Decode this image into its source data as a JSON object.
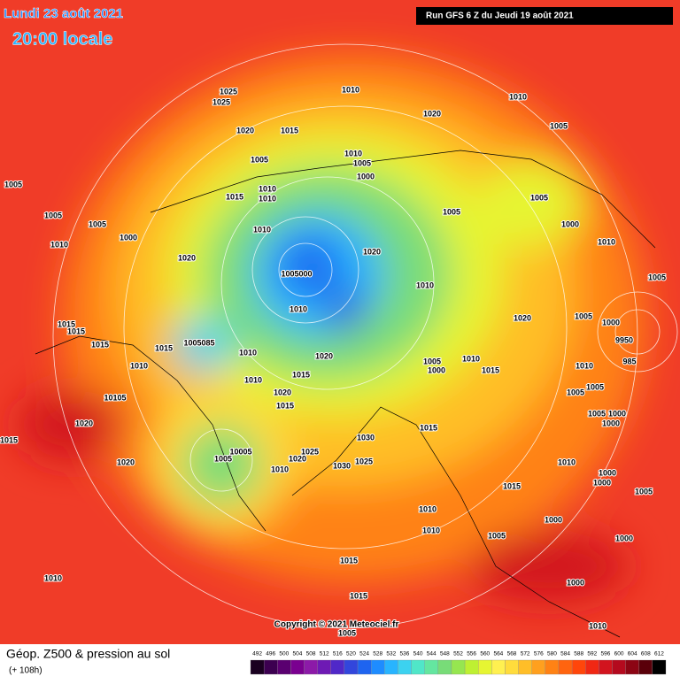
{
  "header": {
    "date": "Lundi 23 août 2021",
    "time": "20:00 locale",
    "run": "Run GFS 6 Z du Jeudi 19 août 2021"
  },
  "map": {
    "isobar_labels": [
      "1025",
      "1025",
      "1010",
      "1010",
      "1020",
      "1005",
      "1020",
      "1015",
      "1005",
      "1010",
      "1005",
      "1000",
      "1005",
      "1010",
      "1015",
      "1010",
      "1005",
      "1005",
      "1005",
      "1005",
      "1000",
      "1000",
      "1010",
      "1010",
      "1010",
      "1020",
      "1020",
      "1005000",
      "1010",
      "1005",
      "1010",
      "1020",
      "1005",
      "1015",
      "1015",
      "1015",
      "1015",
      "1005085",
      "1010",
      "1020",
      "1005",
      "1010",
      "1015",
      "1000",
      "1010",
      "1015",
      "1010",
      "1020",
      "1015",
      "10105",
      "1010",
      "1005",
      "1005",
      "1005",
      "1000",
      "1000",
      "1015",
      "1030",
      "1020",
      "1015",
      "1020",
      "10005",
      "1005",
      "1025",
      "1020",
      "1010",
      "1030",
      "1025",
      "1010",
      "1000",
      "1000",
      "1015",
      "1005",
      "1010",
      "1000",
      "1010",
      "1005",
      "1000",
      "1015",
      "1010",
      "1000",
      "1015",
      "1010",
      "1005",
      "985",
      "9950",
      "1000"
    ]
  },
  "footer": {
    "copyright": "Copyright © 2021 Meteociel.fr",
    "title": "Géop. Z500 & pression au sol",
    "lead": "(+ 108h)"
  },
  "legend": {
    "values": [
      492,
      496,
      500,
      504,
      508,
      512,
      516,
      520,
      524,
      528,
      532,
      536,
      540,
      544,
      548,
      552,
      556,
      560,
      564,
      568,
      572,
      576,
      580,
      584,
      588,
      592,
      596,
      600,
      604,
      608,
      612
    ],
    "colors": [
      "#1a0020",
      "#3c0050",
      "#5a0070",
      "#7a0090",
      "#8c1aa8",
      "#6e1ab4",
      "#5028c8",
      "#3246dc",
      "#1e64f0",
      "#1e8cff",
      "#28b4ff",
      "#3cd2f0",
      "#50e6c8",
      "#64e6a0",
      "#78dc78",
      "#96e650",
      "#bef032",
      "#e6f532",
      "#fff050",
      "#ffdc3c",
      "#ffbe28",
      "#ffa01e",
      "#ff8214",
      "#ff640f",
      "#ff460a",
      "#f02814",
      "#d2141e",
      "#b40a1e",
      "#8c0514",
      "#5a000a",
      "#000000"
    ]
  }
}
